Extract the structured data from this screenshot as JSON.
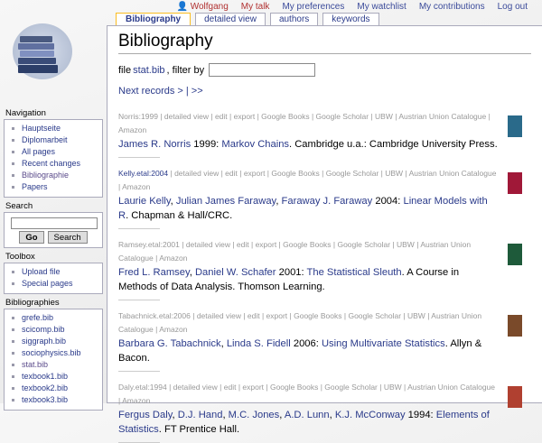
{
  "personal": {
    "user": "Wolfgang",
    "talk": "My talk",
    "prefs": "My preferences",
    "watchlist": "My watchlist",
    "contribs": "My contributions",
    "logout": "Log out"
  },
  "tabs": [
    "Bibliography",
    "detailed view",
    "authors",
    "keywords"
  ],
  "title": "Bibliography",
  "filter": {
    "prefix": "file",
    "file": "stat.bib",
    "suffix": ", filter by",
    "value": ""
  },
  "next": "Next records > | >>",
  "links": [
    "detailed view",
    "edit",
    "export",
    "Google Books",
    "Google Scholar",
    "UBW",
    "Austrian Union Catalogue",
    "Amazon"
  ],
  "entries": [
    {
      "key": "Norris:1999",
      "key_active": false,
      "cover": "#2a6a8a",
      "cite": [
        {
          "t": "James R. Norris",
          "l": 1
        },
        {
          "t": " 1999: "
        },
        {
          "t": "Markov Chains",
          "l": 1
        },
        {
          "t": ". Cambridge u.a.: Cambridge University Press."
        }
      ]
    },
    {
      "key": "Kelly.etal:2004",
      "key_active": true,
      "cover": "#a01838",
      "cite": [
        {
          "t": "Laurie Kelly",
          "l": 1
        },
        {
          "t": ", "
        },
        {
          "t": "Julian James Faraway",
          "l": 1
        },
        {
          "t": ", "
        },
        {
          "t": "Faraway J. Faraway",
          "l": 1
        },
        {
          "t": " 2004: "
        },
        {
          "t": "Linear Models with R",
          "l": 1
        },
        {
          "t": ". Chapman & Hall/CRC."
        }
      ]
    },
    {
      "key": "Ramsey.etal:2001",
      "key_active": false,
      "cover": "#1e5a3a",
      "cite": [
        {
          "t": "Fred L. Ramsey",
          "l": 1
        },
        {
          "t": ", "
        },
        {
          "t": "Daniel W. Schafer",
          "l": 1
        },
        {
          "t": " 2001: "
        },
        {
          "t": "The Statistical Sleuth",
          "l": 1
        },
        {
          "t": ". A Course in Methods of Data Analysis. Thomson Learning."
        }
      ]
    },
    {
      "key": "Tabachnick.etal:2006",
      "key_active": false,
      "cover": "#7a4a2a",
      "cite": [
        {
          "t": "Barbara G. Tabachnick",
          "l": 1
        },
        {
          "t": ", "
        },
        {
          "t": "Linda S. Fidell",
          "l": 1
        },
        {
          "t": " 2006: "
        },
        {
          "t": "Using Multivariate Statistics",
          "l": 1
        },
        {
          "t": ". Allyn & Bacon."
        }
      ]
    },
    {
      "key": "Daly.etal:1994",
      "key_active": false,
      "cover": "#b04030",
      "cite": [
        {
          "t": "Fergus Daly",
          "l": 1
        },
        {
          "t": ", "
        },
        {
          "t": "D.J. Hand",
          "l": 1
        },
        {
          "t": ", "
        },
        {
          "t": "M.C. Jones",
          "l": 1
        },
        {
          "t": ", "
        },
        {
          "t": "A.D. Lunn",
          "l": 1
        },
        {
          "t": ", "
        },
        {
          "t": "K.J. McConway",
          "l": 1
        },
        {
          "t": " 1994: "
        },
        {
          "t": "Elements of Statistics",
          "l": 1
        },
        {
          "t": ". FT Prentice Hall."
        }
      ]
    }
  ],
  "sidebar": {
    "navigation": {
      "title": "Navigation",
      "items": [
        "Hauptseite",
        "Diplomarbeit",
        "All pages",
        "Recent changes",
        "Bibliographie",
        "Papers"
      ]
    },
    "search": {
      "title": "Search",
      "go": "Go",
      "search": "Search",
      "value": ""
    },
    "toolbox": {
      "title": "Toolbox",
      "items": [
        "Upload file",
        "Special pages"
      ]
    },
    "bibliographies": {
      "title": "Bibliographies",
      "items": [
        "grefe.bib",
        "scicomp.bib",
        "siggraph.bib",
        "sociophysics.bib",
        "stat.bib",
        "texbook1.bib",
        "texbook2.bib",
        "texbook3.bib"
      ]
    }
  }
}
